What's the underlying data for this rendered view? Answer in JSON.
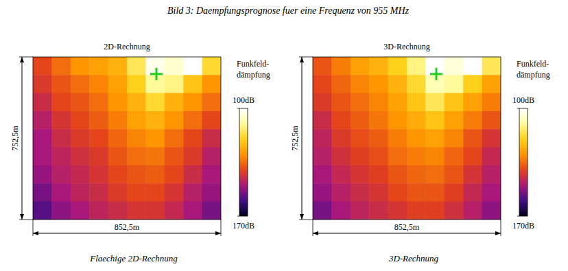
{
  "title": "Bild 3: Daempfungsprognose fuer eine Frequenz von 955 MHz",
  "chart_data": [
    {
      "type": "heatmap",
      "title": "2D-Rechnung",
      "caption": "Flaechige 2D-Rechnung",
      "dimensions": {
        "width": {
          "value": 852.5,
          "label": "852,5m"
        },
        "height": {
          "value": 752.5,
          "label": "752,5m"
        }
      },
      "transmitter": {
        "x": 560,
        "y": 79
      },
      "colorbar": {
        "title": [
          "Funkfeld-",
          "dämpfung"
        ],
        "range": [
          100,
          170
        ],
        "ticks": [
          {
            "value": 100,
            "label": "100dB"
          },
          {
            "value": 170,
            "label": "170dB"
          }
        ]
      },
      "cells": [
        [
          140,
          135,
          130,
          128,
          125,
          115,
          102,
          105,
          100,
          118
        ],
        [
          142,
          138,
          135,
          132,
          128,
          120,
          110,
          112,
          122,
          130
        ],
        [
          145,
          140,
          138,
          135,
          130,
          125,
          118,
          125,
          130,
          135
        ],
        [
          148,
          143,
          140,
          137,
          133,
          128,
          125,
          130,
          135,
          140
        ],
        [
          150,
          145,
          142,
          140,
          136,
          132,
          130,
          135,
          140,
          145
        ],
        [
          150,
          147,
          144,
          142,
          138,
          135,
          134,
          138,
          142,
          148
        ],
        [
          152,
          148,
          146,
          143,
          140,
          138,
          137,
          140,
          145,
          150
        ],
        [
          155,
          150,
          147,
          145,
          142,
          140,
          140,
          143,
          148,
          152
        ],
        [
          158,
          153,
          150,
          147,
          145,
          143,
          143,
          146,
          150,
          155
        ]
      ]
    },
    {
      "type": "heatmap",
      "title": "3D-Rechnung",
      "caption": "3D-Rechnung",
      "dimensions": {
        "width": {
          "value": 852.5,
          "label": "852,5m"
        },
        "height": {
          "value": 752.5,
          "label": "752,5m"
        }
      },
      "transmitter": {
        "x": 560,
        "y": 79
      },
      "colorbar": {
        "title": [
          "Funkfeld-",
          "dämpfung"
        ],
        "range": [
          100,
          170
        ],
        "ticks": [
          {
            "value": 100,
            "label": "100dB"
          },
          {
            "value": 170,
            "label": "170dB"
          }
        ]
      },
      "cells": [
        [
          138,
          133,
          128,
          125,
          120,
          112,
          100,
          104,
          100,
          115
        ],
        [
          140,
          136,
          132,
          130,
          125,
          118,
          108,
          110,
          120,
          128
        ],
        [
          142,
          138,
          135,
          132,
          128,
          122,
          115,
          122,
          128,
          133
        ],
        [
          145,
          140,
          137,
          134,
          130,
          126,
          122,
          128,
          133,
          138
        ],
        [
          147,
          142,
          139,
          137,
          133,
          130,
          128,
          132,
          138,
          143
        ],
        [
          148,
          144,
          141,
          139,
          135,
          133,
          132,
          136,
          140,
          146
        ],
        [
          150,
          146,
          143,
          141,
          138,
          136,
          135,
          138,
          143,
          148
        ],
        [
          152,
          148,
          145,
          143,
          140,
          138,
          138,
          141,
          146,
          150
        ],
        [
          155,
          150,
          147,
          145,
          143,
          141,
          141,
          144,
          148,
          153
        ]
      ]
    }
  ]
}
